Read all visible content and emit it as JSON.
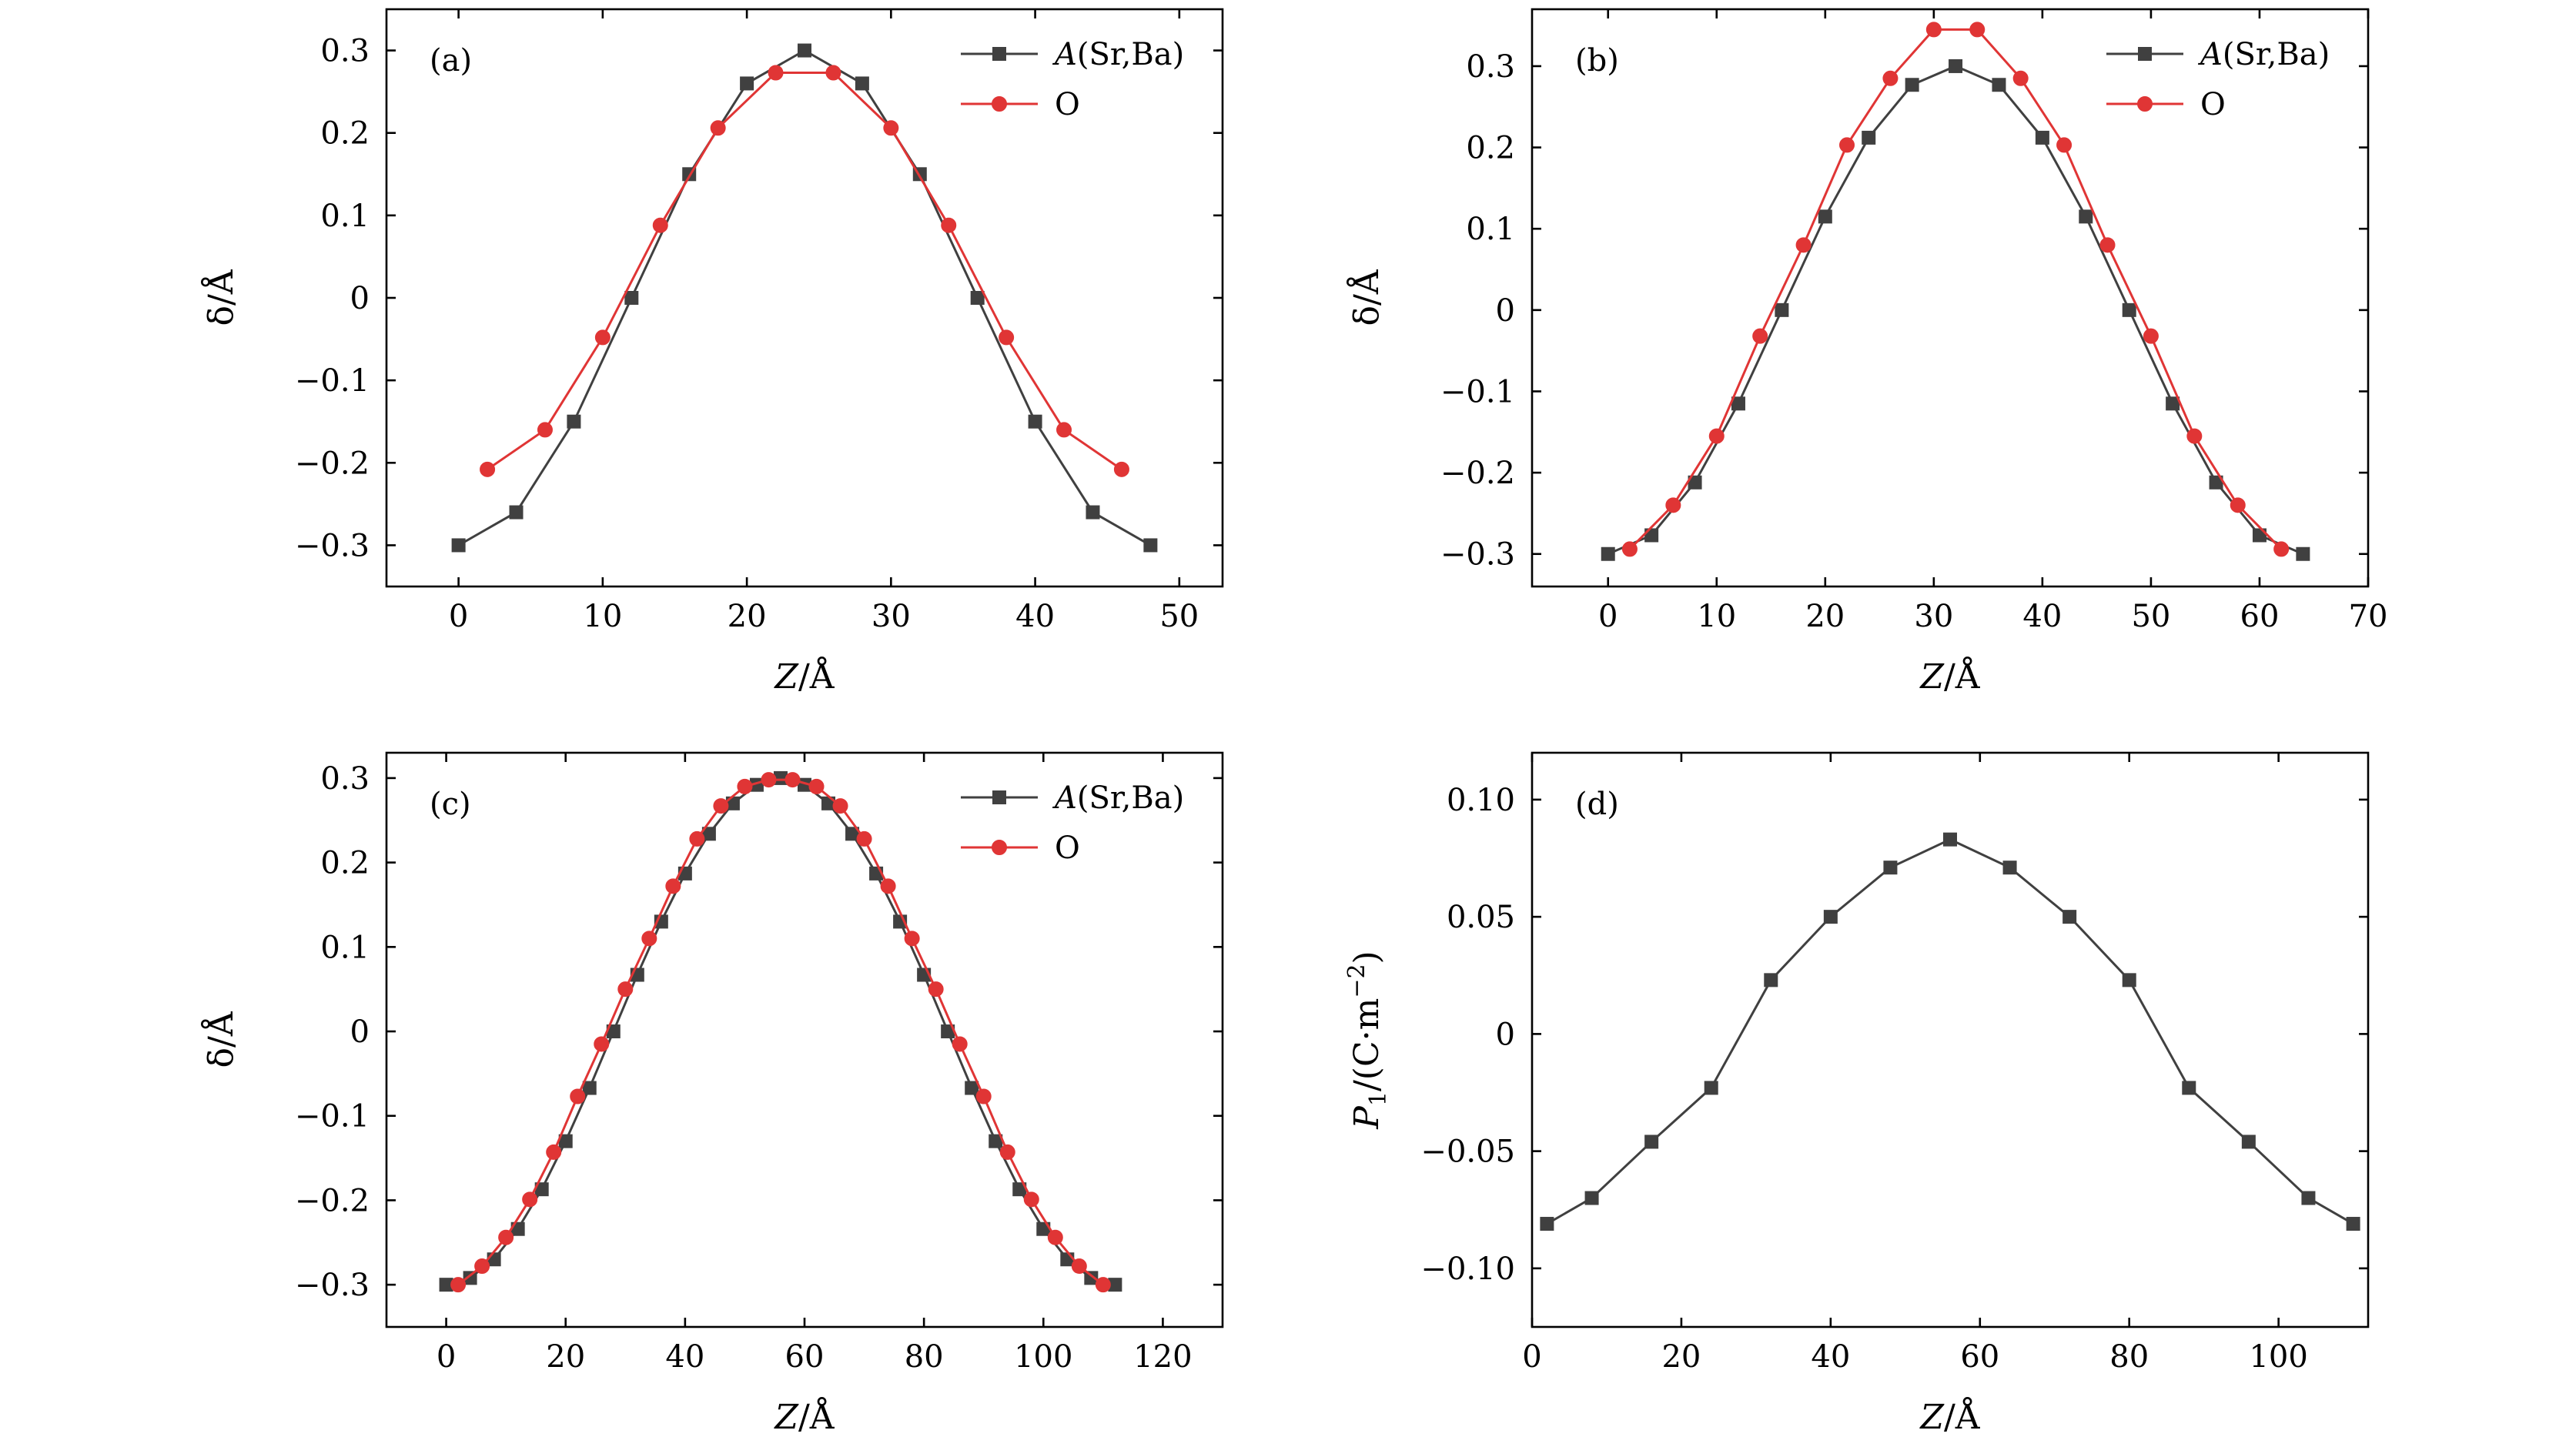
{
  "chart_data": [
    {
      "type": "line",
      "panel": "(a)",
      "xlabel": "Z/Å",
      "ylabel": "δ/Å",
      "xlim": [
        -5,
        53
      ],
      "ylim": [
        -0.35,
        0.35
      ],
      "xticks": [
        0,
        10,
        20,
        30,
        40,
        50
      ],
      "xtick_labels": [
        "0",
        "10",
        "20",
        "30",
        "40",
        "50"
      ],
      "yticks": [
        -0.3,
        -0.2,
        -0.1,
        0,
        0.1,
        0.2,
        0.3
      ],
      "ytick_labels": [
        "−0.3",
        "−0.2",
        "−0.1",
        "0",
        "0.1",
        "0.2",
        "0.3"
      ],
      "legend_position": "top-right",
      "series": [
        {
          "name": "A(Sr,Ba)",
          "color": "#404040",
          "marker": "square",
          "x": [
            0,
            4,
            8,
            12,
            16,
            20,
            24,
            28,
            32,
            36,
            40,
            44,
            48
          ],
          "y": [
            -0.3,
            -0.26,
            -0.15,
            0,
            0.15,
            0.26,
            0.3,
            0.26,
            0.15,
            0,
            -0.15,
            -0.26,
            -0.3
          ]
        },
        {
          "name": "O",
          "color": "#e03535",
          "marker": "circle",
          "x": [
            2,
            6,
            10,
            14,
            18,
            22,
            26,
            30,
            34,
            38,
            42,
            46
          ],
          "y": [
            -0.208,
            -0.16,
            -0.048,
            0.088,
            0.206,
            0.273,
            0.273,
            0.206,
            0.088,
            -0.048,
            -0.16,
            -0.208
          ]
        }
      ]
    },
    {
      "type": "line",
      "panel": "(b)",
      "xlabel": "Z/Å",
      "ylabel": "δ/Å",
      "xlim": [
        -7,
        70
      ],
      "ylim": [
        -0.34,
        0.37
      ],
      "xticks": [
        0,
        10,
        20,
        30,
        40,
        50,
        60,
        70
      ],
      "xtick_labels": [
        "0",
        "10",
        "20",
        "30",
        "40",
        "50",
        "60",
        "70"
      ],
      "yticks": [
        -0.3,
        -0.2,
        -0.1,
        0,
        0.1,
        0.2,
        0.3
      ],
      "ytick_labels": [
        "−0.3",
        "−0.2",
        "−0.1",
        "0",
        "0.1",
        "0.2",
        "0.3"
      ],
      "legend_position": "top-right",
      "series": [
        {
          "name": "A(Sr,Ba)",
          "color": "#404040",
          "marker": "square",
          "x": [
            0,
            4,
            8,
            12,
            16,
            20,
            24,
            28,
            32,
            36,
            40,
            44,
            48,
            52,
            56,
            60,
            64
          ],
          "y": [
            -0.3,
            -0.277,
            -0.212,
            -0.115,
            0,
            0.115,
            0.212,
            0.277,
            0.3,
            0.277,
            0.212,
            0.115,
            0,
            -0.115,
            -0.212,
            -0.277,
            -0.3
          ]
        },
        {
          "name": "O",
          "color": "#e03535",
          "marker": "circle",
          "x": [
            2,
            6,
            10,
            14,
            18,
            22,
            26,
            30,
            34,
            38,
            42,
            46,
            50,
            54,
            58,
            62
          ],
          "y": [
            -0.294,
            -0.24,
            -0.155,
            -0.032,
            0.08,
            0.203,
            0.285,
            0.345,
            0.345,
            0.285,
            0.203,
            0.08,
            -0.032,
            -0.155,
            -0.24,
            -0.294
          ]
        }
      ]
    },
    {
      "type": "line",
      "panel": "(c)",
      "xlabel": "Z/Å",
      "ylabel": "δ/Å",
      "xlim": [
        -10,
        130
      ],
      "ylim": [
        -0.35,
        0.33
      ],
      "xticks": [
        0,
        20,
        40,
        60,
        80,
        100,
        120
      ],
      "xtick_labels": [
        "0",
        "20",
        "40",
        "60",
        "80",
        "100",
        "120"
      ],
      "yticks": [
        -0.3,
        -0.2,
        -0.1,
        0,
        0.1,
        0.2,
        0.3
      ],
      "ytick_labels": [
        "−0.3",
        "−0.2",
        "−0.1",
        "0",
        "0.1",
        "0.2",
        "0.3"
      ],
      "legend_position": "top-right",
      "series": [
        {
          "name": "A(Sr,Ba)",
          "color": "#404040",
          "marker": "square",
          "x": [
            0,
            4,
            8,
            12,
            16,
            20,
            24,
            28,
            32,
            36,
            40,
            44,
            48,
            52,
            56,
            60,
            64,
            68,
            72,
            76,
            80,
            84,
            88,
            92,
            96,
            100,
            104,
            108,
            112
          ],
          "y": [
            -0.3,
            -0.292,
            -0.27,
            -0.234,
            -0.187,
            -0.13,
            -0.067,
            0,
            0.067,
            0.13,
            0.187,
            0.234,
            0.27,
            0.292,
            0.3,
            0.292,
            0.27,
            0.234,
            0.187,
            0.13,
            0.067,
            0,
            -0.067,
            -0.13,
            -0.187,
            -0.234,
            -0.27,
            -0.292,
            -0.3
          ]
        },
        {
          "name": "O",
          "color": "#e03535",
          "marker": "circle",
          "x": [
            2,
            6,
            10,
            14,
            18,
            22,
            26,
            30,
            34,
            38,
            42,
            46,
            50,
            54,
            58,
            62,
            66,
            70,
            74,
            78,
            82,
            86,
            90,
            94,
            98,
            102,
            106,
            110
          ],
          "y": [
            -0.3,
            -0.278,
            -0.244,
            -0.199,
            -0.143,
            -0.077,
            -0.015,
            0.05,
            0.11,
            0.172,
            0.228,
            0.267,
            0.29,
            0.298,
            0.298,
            0.29,
            0.267,
            0.228,
            0.172,
            0.11,
            0.05,
            -0.015,
            -0.077,
            -0.143,
            -0.199,
            -0.244,
            -0.278,
            -0.3
          ]
        }
      ]
    },
    {
      "type": "line",
      "panel": "(d)",
      "xlabel": "Z/Å",
      "ylabel": "P1/(C·m−2)",
      "xlim": [
        0,
        112
      ],
      "ylim": [
        -0.125,
        0.12
      ],
      "xticks": [
        0,
        20,
        40,
        60,
        80,
        100
      ],
      "xtick_labels": [
        "0",
        "20",
        "40",
        "60",
        "80",
        "100"
      ],
      "yticks": [
        -0.1,
        -0.05,
        0,
        0.05,
        0.1
      ],
      "ytick_labels": [
        "−0.10",
        "−0.05",
        "0",
        "0.05",
        "0.10"
      ],
      "series": [
        {
          "color": "#404040",
          "marker": "square",
          "x": [
            2,
            8,
            16,
            24,
            32,
            40,
            48,
            56,
            64,
            72,
            80,
            88,
            96,
            104,
            110
          ],
          "y": [
            -0.081,
            -0.07,
            -0.046,
            -0.023,
            0.023,
            0.05,
            0.071,
            0.083,
            0.071,
            0.05,
            0.023,
            -0.023,
            -0.046,
            -0.07,
            -0.081
          ]
        }
      ]
    }
  ]
}
